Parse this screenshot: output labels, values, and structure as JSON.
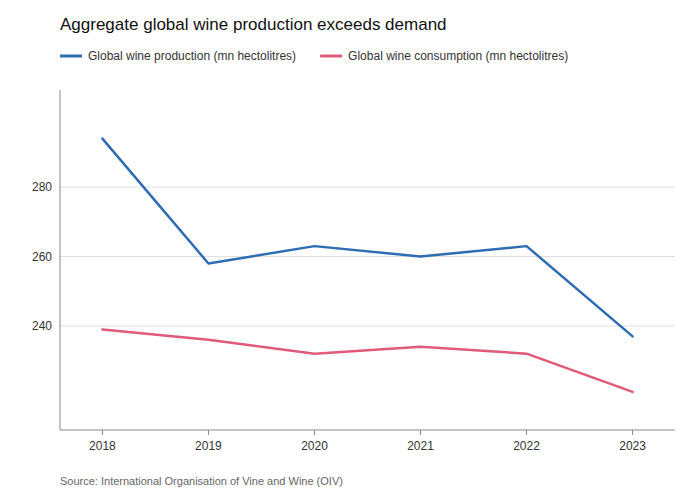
{
  "chart_data": {
    "type": "line",
    "title": "Aggregate global wine production exceeds demand",
    "annotations": [
      "Source: International Organisation of Vine and Wine (OIV)"
    ],
    "x": [
      2018,
      2019,
      2020,
      2021,
      2022,
      2023
    ],
    "series": [
      {
        "name": "Global wine production (mn hectolitres)",
        "color": "#2e6db4",
        "values": [
          294,
          258,
          263,
          260,
          263,
          237
        ]
      },
      {
        "name": "Global wine consumption (mn hectolitres)",
        "color": "#e05a7a",
        "values": [
          239,
          236,
          232,
          234,
          232,
          221
        ]
      }
    ],
    "xlim": [
      2017.6,
      2023.4
    ],
    "xticks": [
      2018,
      2019,
      2020,
      2021,
      2022,
      2023
    ],
    "ylim": [
      210,
      308
    ],
    "yticks": [
      240,
      260,
      280
    ],
    "grid": true,
    "legend": "top-left"
  }
}
